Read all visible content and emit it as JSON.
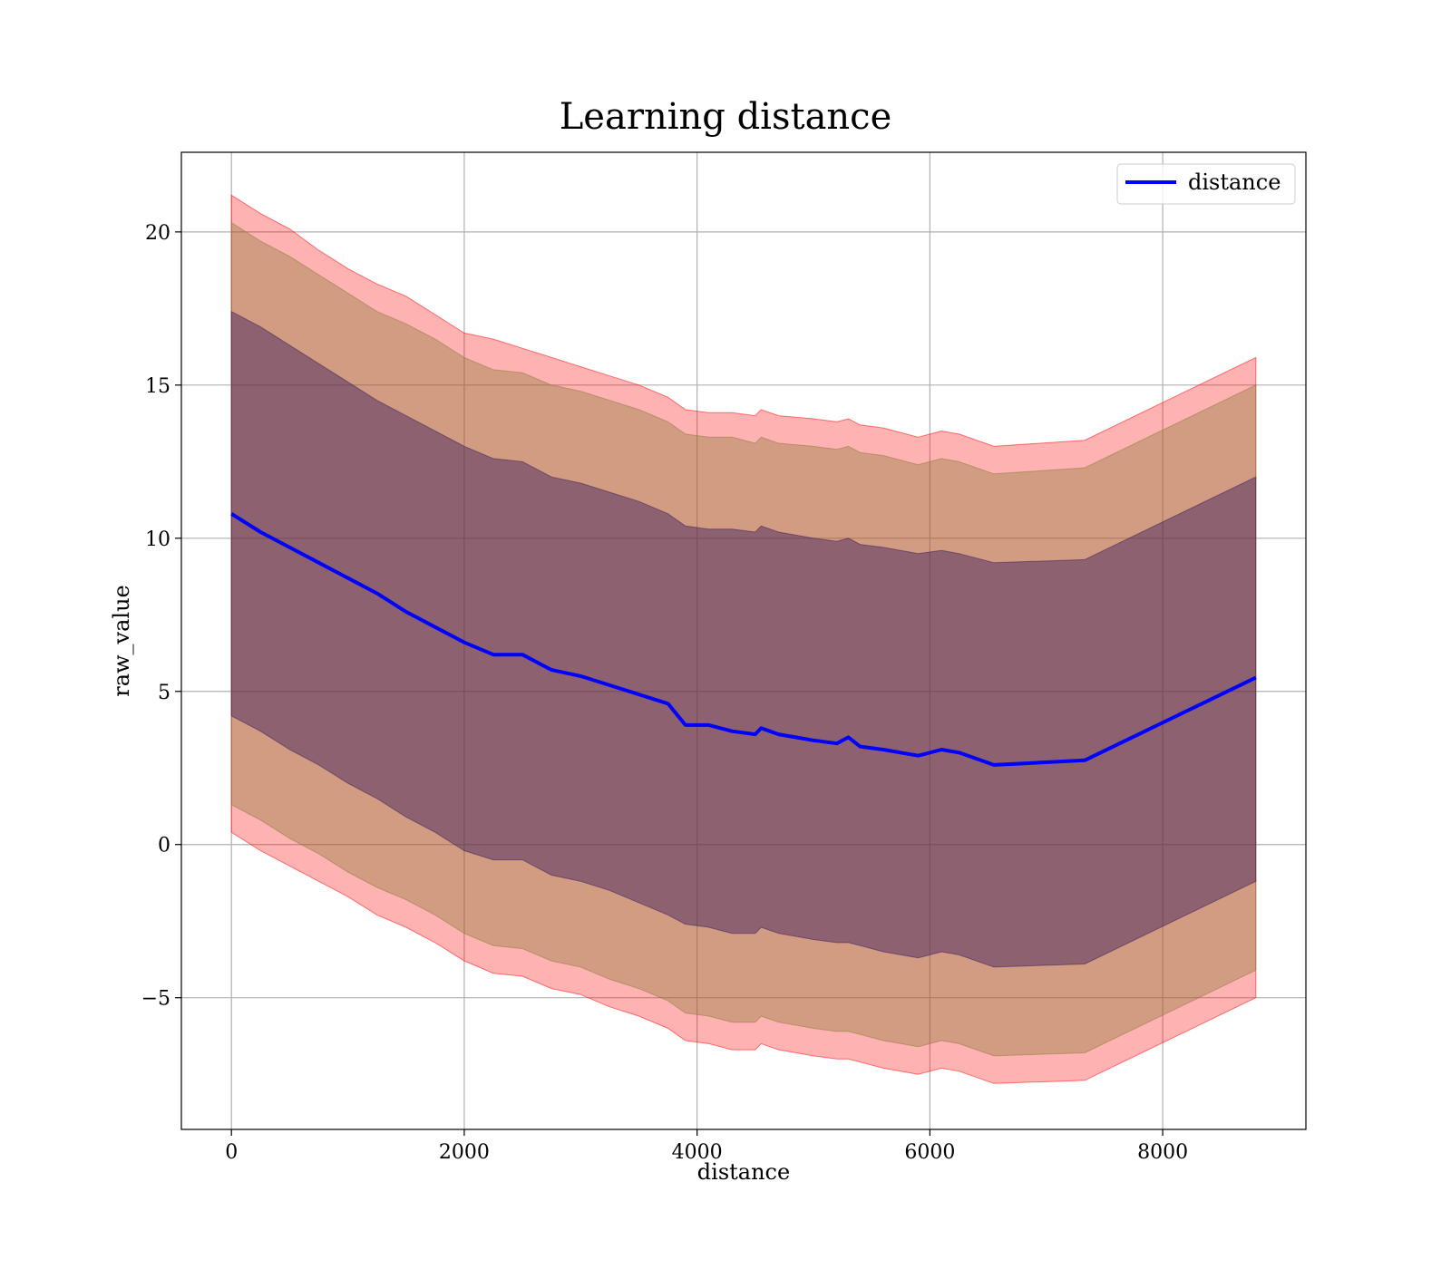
{
  "chart_data": {
    "type": "line",
    "title": "Learning distance",
    "xlabel": "distance",
    "ylabel": "raw_value",
    "xlim": [
      -430,
      9230
    ],
    "ylim": [
      -9.3,
      22.6
    ],
    "xticks": [
      0,
      2000,
      4000,
      6000,
      8000
    ],
    "xtick_labels": [
      "0",
      "2000",
      "4000",
      "6000",
      "8000"
    ],
    "yticks": [
      -5,
      0,
      5,
      10,
      15,
      20
    ],
    "ytick_labels": [
      "−5",
      "0",
      "5",
      "10",
      "15",
      "20"
    ],
    "grid": true,
    "legend_position": "top-right",
    "series": [
      {
        "name": "distance",
        "color": "#0000ff",
        "x": [
          0,
          250,
          500,
          750,
          1000,
          1250,
          1500,
          1750,
          2000,
          2250,
          2500,
          2750,
          3000,
          3250,
          3500,
          3750,
          3900,
          4100,
          4300,
          4500,
          4550,
          4700,
          5000,
          5200,
          5300,
          5400,
          5600,
          5900,
          6100,
          6250,
          6550,
          7330,
          8800
        ],
        "y": [
          10.8,
          10.2,
          9.7,
          9.2,
          8.7,
          8.2,
          7.6,
          7.1,
          6.6,
          6.2,
          6.2,
          5.7,
          5.5,
          5.2,
          4.9,
          4.6,
          3.9,
          3.9,
          3.7,
          3.6,
          3.8,
          3.6,
          3.4,
          3.3,
          3.5,
          3.2,
          3.1,
          2.9,
          3.1,
          3.0,
          2.6,
          2.75,
          5.45
        ]
      }
    ],
    "bands": [
      {
        "color": "#ff0000",
        "opacity": 0.3,
        "x": [
          0,
          250,
          500,
          750,
          1000,
          1250,
          1500,
          1750,
          2000,
          2250,
          2500,
          2750,
          3000,
          3250,
          3500,
          3750,
          3900,
          4100,
          4300,
          4500,
          4550,
          4700,
          5000,
          5200,
          5300,
          5400,
          5600,
          5900,
          6100,
          6250,
          6550,
          7330,
          8800
        ],
        "upper": [
          21.2,
          20.6,
          20.1,
          19.4,
          18.8,
          18.3,
          17.9,
          17.3,
          16.7,
          16.5,
          16.2,
          15.9,
          15.6,
          15.3,
          15.0,
          14.6,
          14.2,
          14.1,
          14.1,
          14.0,
          14.2,
          14.0,
          13.9,
          13.8,
          13.9,
          13.7,
          13.6,
          13.3,
          13.5,
          13.4,
          13.0,
          13.2,
          15.9
        ],
        "lower": [
          0.4,
          -0.2,
          -0.7,
          -1.2,
          -1.7,
          -2.3,
          -2.7,
          -3.2,
          -3.8,
          -4.2,
          -4.3,
          -4.7,
          -4.9,
          -5.3,
          -5.6,
          -6.0,
          -6.4,
          -6.5,
          -6.7,
          -6.7,
          -6.5,
          -6.7,
          -6.9,
          -7.0,
          -7.0,
          -7.1,
          -7.3,
          -7.5,
          -7.3,
          -7.4,
          -7.8,
          -7.7,
          -5.0
        ]
      },
      {
        "color": "#8b7a3a",
        "opacity": 0.4,
        "x": [
          0,
          250,
          500,
          750,
          1000,
          1250,
          1500,
          1750,
          2000,
          2250,
          2500,
          2750,
          3000,
          3250,
          3500,
          3750,
          3900,
          4100,
          4300,
          4500,
          4550,
          4700,
          5000,
          5200,
          5300,
          5400,
          5600,
          5900,
          6100,
          6250,
          6550,
          7330,
          8800
        ],
        "upper": [
          20.3,
          19.7,
          19.2,
          18.6,
          18.0,
          17.4,
          17.0,
          16.5,
          15.9,
          15.5,
          15.4,
          15.0,
          14.8,
          14.5,
          14.2,
          13.8,
          13.4,
          13.3,
          13.3,
          13.1,
          13.3,
          13.1,
          13.0,
          12.9,
          13.0,
          12.8,
          12.7,
          12.4,
          12.6,
          12.5,
          12.1,
          12.3,
          15.0
        ],
        "lower": [
          1.3,
          0.8,
          0.2,
          -0.3,
          -0.9,
          -1.4,
          -1.8,
          -2.3,
          -2.9,
          -3.3,
          -3.4,
          -3.8,
          -4.0,
          -4.4,
          -4.7,
          -5.1,
          -5.5,
          -5.6,
          -5.8,
          -5.8,
          -5.6,
          -5.8,
          -6.0,
          -6.1,
          -6.1,
          -6.2,
          -6.4,
          -6.6,
          -6.4,
          -6.5,
          -6.9,
          -6.8,
          -4.1
        ]
      },
      {
        "color": "#3a1a5a",
        "opacity": 0.45,
        "x": [
          0,
          250,
          500,
          750,
          1000,
          1250,
          1500,
          1750,
          2000,
          2250,
          2500,
          2750,
          3000,
          3250,
          3500,
          3750,
          3900,
          4100,
          4300,
          4500,
          4550,
          4700,
          5000,
          5200,
          5300,
          5400,
          5600,
          5900,
          6100,
          6250,
          6550,
          7330,
          8800
        ],
        "upper": [
          17.4,
          16.9,
          16.3,
          15.7,
          15.1,
          14.5,
          14.0,
          13.5,
          13.0,
          12.6,
          12.5,
          12.0,
          11.8,
          11.5,
          11.2,
          10.8,
          10.4,
          10.3,
          10.3,
          10.2,
          10.4,
          10.2,
          10.0,
          9.9,
          10.0,
          9.8,
          9.7,
          9.5,
          9.6,
          9.5,
          9.2,
          9.3,
          12.0
        ],
        "lower": [
          4.2,
          3.7,
          3.1,
          2.6,
          2.0,
          1.5,
          0.9,
          0.4,
          -0.2,
          -0.5,
          -0.5,
          -1.0,
          -1.2,
          -1.5,
          -1.9,
          -2.3,
          -2.6,
          -2.7,
          -2.9,
          -2.9,
          -2.7,
          -2.9,
          -3.1,
          -3.2,
          -3.2,
          -3.3,
          -3.5,
          -3.7,
          -3.5,
          -3.6,
          -4.0,
          -3.9,
          -1.2
        ]
      }
    ]
  }
}
